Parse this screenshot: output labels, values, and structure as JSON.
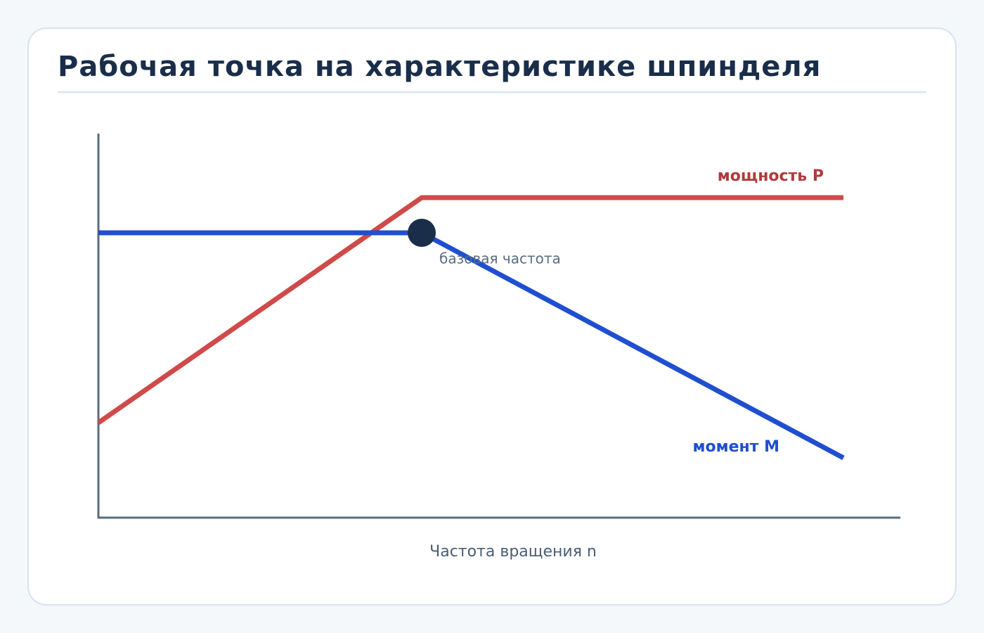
{
  "header": {
    "title": "Рабочая точка на характеристике шпинделя"
  },
  "diagram": {
    "x_axis_label": "Частота вращения n",
    "curves": [
      {
        "label": "мощность P"
      },
      {
        "label": "момент M"
      }
    ],
    "annotation": "базовая частота"
  }
}
